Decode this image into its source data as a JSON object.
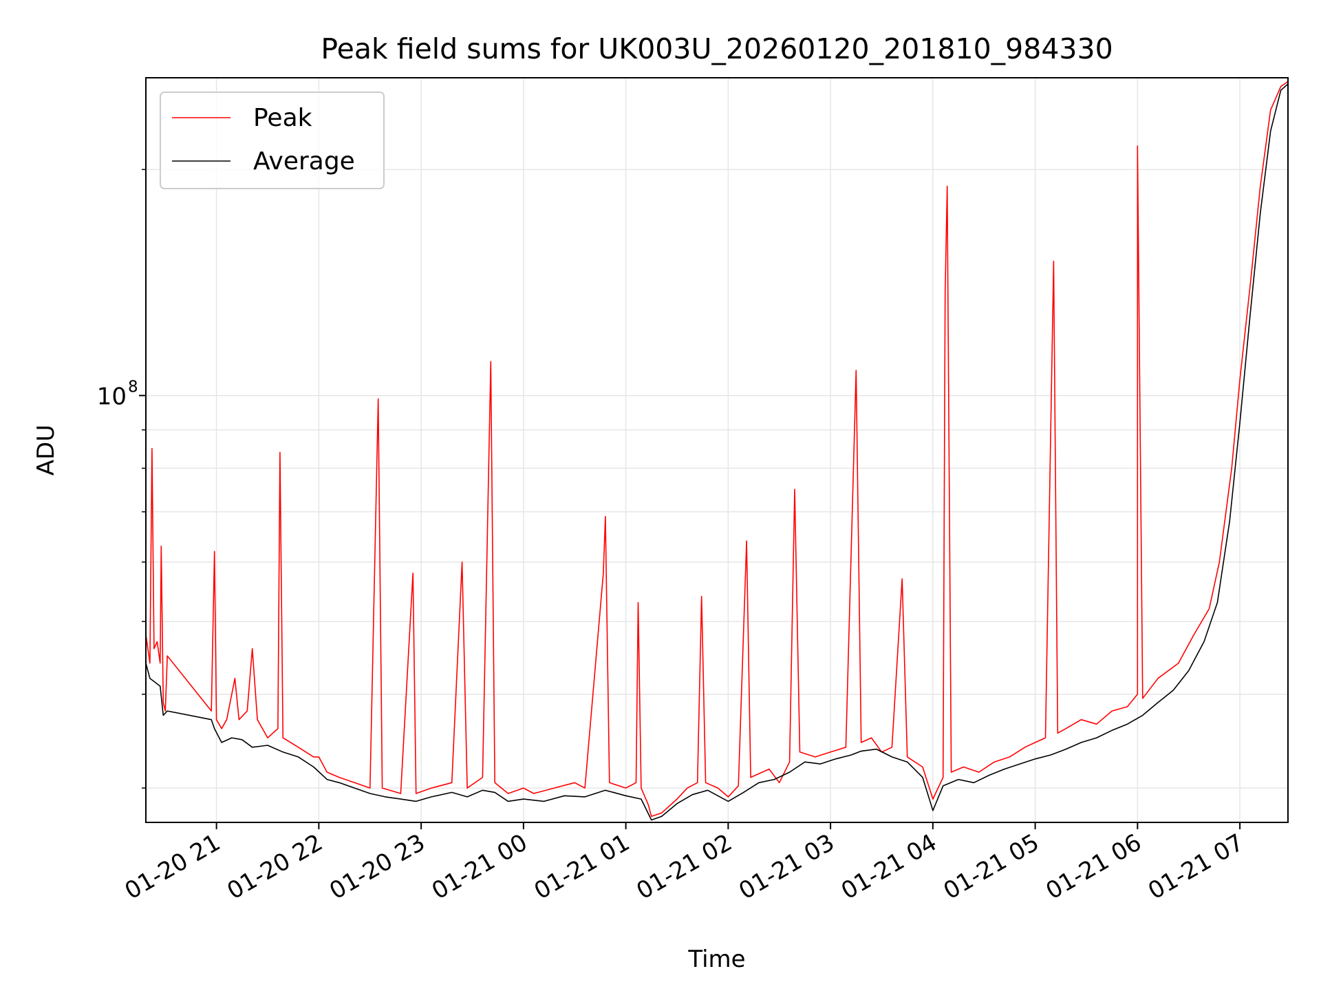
{
  "chart_data": {
    "type": "line",
    "title": "Peak field sums for UK003U_20260120_201810_984330",
    "xlabel": "Time",
    "ylabel": "ADU",
    "y_scale": "log",
    "grid": true,
    "legend_position": "top-left",
    "xlim_hours": [
      20.31,
      31.47
    ],
    "ylim": [
      27000000,
      265000000
    ],
    "x_tick_labels": [
      "01-20 21",
      "01-20 22",
      "01-20 23",
      "01-21 00",
      "01-21 01",
      "01-21 02",
      "01-21 03",
      "01-21 04",
      "01-21 05",
      "01-21 06",
      "01-21 07"
    ],
    "x_tick_hours": [
      21,
      22,
      23,
      24,
      25,
      26,
      27,
      28,
      29,
      30,
      31
    ],
    "y_major_tick": {
      "label_base": "10",
      "label_exp": "8",
      "value": 100000000
    },
    "y_minor_ticks": [
      30000000,
      40000000,
      50000000,
      60000000,
      70000000,
      80000000,
      90000000,
      200000000
    ],
    "series": [
      {
        "name": "Peak",
        "color": "#ff0000",
        "points": [
          [
            20.31,
            48000000
          ],
          [
            20.35,
            44000000
          ],
          [
            20.37,
            85000000
          ],
          [
            20.39,
            46000000
          ],
          [
            20.42,
            47000000
          ],
          [
            20.45,
            44000000
          ],
          [
            20.46,
            63000000
          ],
          [
            20.48,
            39000000
          ],
          [
            20.5,
            38000000
          ],
          [
            20.52,
            45000000
          ],
          [
            20.95,
            38000000
          ],
          [
            20.98,
            62000000
          ],
          [
            21.0,
            37000000
          ],
          [
            21.05,
            36000000
          ],
          [
            21.1,
            37000000
          ],
          [
            21.18,
            42000000
          ],
          [
            21.22,
            37000000
          ],
          [
            21.3,
            38000000
          ],
          [
            21.35,
            46000000
          ],
          [
            21.4,
            37000000
          ],
          [
            21.5,
            35000000
          ],
          [
            21.6,
            36000000
          ],
          [
            21.62,
            84000000
          ],
          [
            21.65,
            35000000
          ],
          [
            21.8,
            34000000
          ],
          [
            21.95,
            33000000
          ],
          [
            22.0,
            33000000
          ],
          [
            22.08,
            31500000
          ],
          [
            22.2,
            31000000
          ],
          [
            22.35,
            30500000
          ],
          [
            22.5,
            30000000
          ],
          [
            22.58,
            99000000
          ],
          [
            22.62,
            30000000
          ],
          [
            22.8,
            29500000
          ],
          [
            22.92,
            58000000
          ],
          [
            22.95,
            29500000
          ],
          [
            23.1,
            30000000
          ],
          [
            23.3,
            30500000
          ],
          [
            23.4,
            60000000
          ],
          [
            23.45,
            30000000
          ],
          [
            23.6,
            31000000
          ],
          [
            23.68,
            111000000
          ],
          [
            23.72,
            30500000
          ],
          [
            23.85,
            29500000
          ],
          [
            24.0,
            30000000
          ],
          [
            24.1,
            29500000
          ],
          [
            24.3,
            30000000
          ],
          [
            24.5,
            30500000
          ],
          [
            24.6,
            30000000
          ],
          [
            24.78,
            58000000
          ],
          [
            24.8,
            69000000
          ],
          [
            24.84,
            30500000
          ],
          [
            25.0,
            30000000
          ],
          [
            25.1,
            30500000
          ],
          [
            25.12,
            53000000
          ],
          [
            25.15,
            30000000
          ],
          [
            25.22,
            28500000
          ],
          [
            25.25,
            27500000
          ],
          [
            25.35,
            27800000
          ],
          [
            25.5,
            29000000
          ],
          [
            25.6,
            30000000
          ],
          [
            25.7,
            30500000
          ],
          [
            25.74,
            54000000
          ],
          [
            25.78,
            30500000
          ],
          [
            25.9,
            30000000
          ],
          [
            26.0,
            29200000
          ],
          [
            26.1,
            30200000
          ],
          [
            26.18,
            64000000
          ],
          [
            26.22,
            31000000
          ],
          [
            26.4,
            31800000
          ],
          [
            26.5,
            30500000
          ],
          [
            26.6,
            32500000
          ],
          [
            26.65,
            75000000
          ],
          [
            26.7,
            33500000
          ],
          [
            26.85,
            33000000
          ],
          [
            27.0,
            33500000
          ],
          [
            27.15,
            34000000
          ],
          [
            27.25,
            108000000
          ],
          [
            27.3,
            34500000
          ],
          [
            27.4,
            35000000
          ],
          [
            27.5,
            33500000
          ],
          [
            27.6,
            34000000
          ],
          [
            27.7,
            57000000
          ],
          [
            27.75,
            33000000
          ],
          [
            27.9,
            32000000
          ],
          [
            28.0,
            29000000
          ],
          [
            28.1,
            31000000
          ],
          [
            28.12,
            137000000
          ],
          [
            28.14,
            190000000
          ],
          [
            28.18,
            31500000
          ],
          [
            28.3,
            32000000
          ],
          [
            28.45,
            31500000
          ],
          [
            28.6,
            32500000
          ],
          [
            28.75,
            33000000
          ],
          [
            28.9,
            34000000
          ],
          [
            29.0,
            34500000
          ],
          [
            29.1,
            35000000
          ],
          [
            29.18,
            151000000
          ],
          [
            29.22,
            35500000
          ],
          [
            29.3,
            36000000
          ],
          [
            29.45,
            37000000
          ],
          [
            29.6,
            36500000
          ],
          [
            29.75,
            38000000
          ],
          [
            29.9,
            38500000
          ],
          [
            30.0,
            40000000
          ],
          [
            30.0,
            215000000
          ],
          [
            30.05,
            39500000
          ],
          [
            30.2,
            42000000
          ],
          [
            30.4,
            44000000
          ],
          [
            30.55,
            48000000
          ],
          [
            30.7,
            52000000
          ],
          [
            30.8,
            60000000
          ],
          [
            30.92,
            80000000
          ],
          [
            31.0,
            105000000
          ],
          [
            31.1,
            140000000
          ],
          [
            31.2,
            190000000
          ],
          [
            31.3,
            240000000
          ],
          [
            31.4,
            258000000
          ],
          [
            31.47,
            262000000
          ]
        ]
      },
      {
        "name": "Average",
        "color": "#000000",
        "points": [
          [
            20.31,
            44000000
          ],
          [
            20.35,
            42000000
          ],
          [
            20.4,
            41500000
          ],
          [
            20.45,
            41000000
          ],
          [
            20.48,
            37500000
          ],
          [
            20.52,
            38000000
          ],
          [
            20.95,
            37000000
          ],
          [
            20.98,
            36000000
          ],
          [
            21.05,
            34500000
          ],
          [
            21.15,
            35000000
          ],
          [
            21.25,
            34800000
          ],
          [
            21.35,
            34000000
          ],
          [
            21.5,
            34200000
          ],
          [
            21.65,
            33500000
          ],
          [
            21.8,
            33000000
          ],
          [
            21.95,
            32000000
          ],
          [
            22.08,
            30800000
          ],
          [
            22.2,
            30500000
          ],
          [
            22.35,
            30000000
          ],
          [
            22.5,
            29500000
          ],
          [
            22.65,
            29200000
          ],
          [
            22.8,
            29000000
          ],
          [
            22.95,
            28800000
          ],
          [
            23.1,
            29200000
          ],
          [
            23.3,
            29600000
          ],
          [
            23.45,
            29200000
          ],
          [
            23.6,
            29800000
          ],
          [
            23.72,
            29600000
          ],
          [
            23.85,
            28800000
          ],
          [
            24.0,
            29000000
          ],
          [
            24.2,
            28800000
          ],
          [
            24.4,
            29300000
          ],
          [
            24.6,
            29200000
          ],
          [
            24.8,
            29800000
          ],
          [
            25.0,
            29300000
          ],
          [
            25.15,
            29000000
          ],
          [
            25.25,
            27200000
          ],
          [
            25.35,
            27500000
          ],
          [
            25.5,
            28600000
          ],
          [
            25.65,
            29400000
          ],
          [
            25.8,
            29800000
          ],
          [
            26.0,
            28800000
          ],
          [
            26.15,
            29600000
          ],
          [
            26.3,
            30500000
          ],
          [
            26.45,
            30800000
          ],
          [
            26.6,
            31500000
          ],
          [
            26.75,
            32500000
          ],
          [
            26.9,
            32300000
          ],
          [
            27.05,
            32800000
          ],
          [
            27.2,
            33200000
          ],
          [
            27.3,
            33600000
          ],
          [
            27.45,
            33800000
          ],
          [
            27.6,
            33000000
          ],
          [
            27.75,
            32500000
          ],
          [
            27.9,
            31000000
          ],
          [
            28.0,
            28000000
          ],
          [
            28.1,
            30200000
          ],
          [
            28.25,
            30800000
          ],
          [
            28.4,
            30500000
          ],
          [
            28.55,
            31200000
          ],
          [
            28.7,
            31800000
          ],
          [
            28.85,
            32300000
          ],
          [
            29.0,
            32800000
          ],
          [
            29.15,
            33200000
          ],
          [
            29.3,
            33800000
          ],
          [
            29.45,
            34500000
          ],
          [
            29.6,
            35000000
          ],
          [
            29.75,
            35800000
          ],
          [
            29.9,
            36500000
          ],
          [
            30.05,
            37500000
          ],
          [
            30.2,
            39000000
          ],
          [
            30.35,
            40500000
          ],
          [
            30.5,
            43000000
          ],
          [
            30.65,
            47000000
          ],
          [
            30.78,
            53000000
          ],
          [
            30.9,
            68000000
          ],
          [
            31.0,
            92000000
          ],
          [
            31.1,
            128000000
          ],
          [
            31.2,
            175000000
          ],
          [
            31.3,
            225000000
          ],
          [
            31.4,
            255000000
          ],
          [
            31.47,
            260000000
          ]
        ]
      }
    ]
  }
}
